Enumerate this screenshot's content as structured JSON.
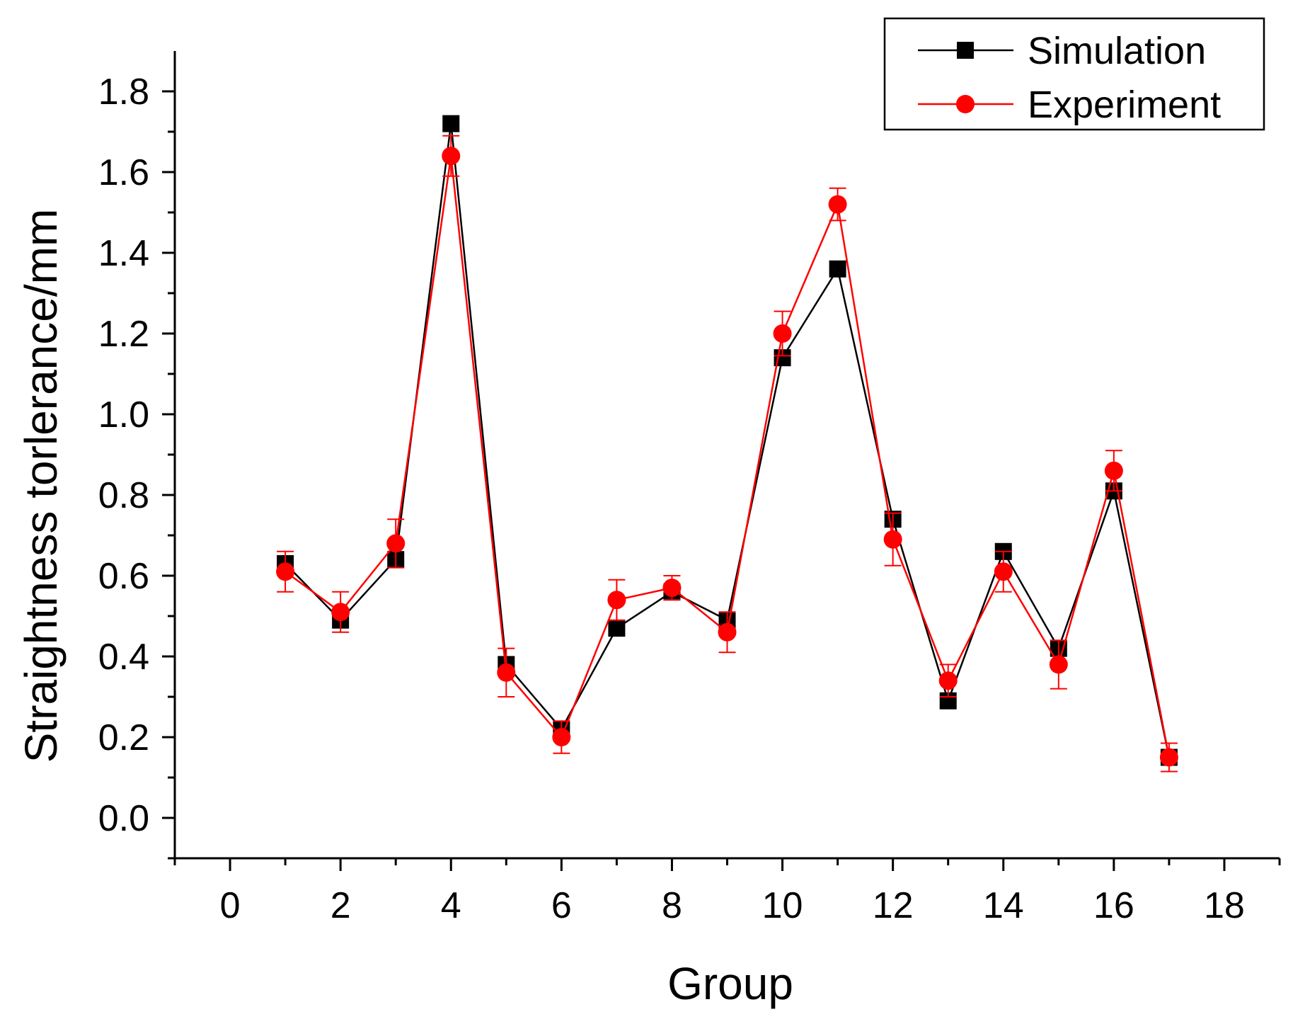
{
  "chart_data": {
    "type": "line",
    "title": "",
    "xlabel": "Group",
    "ylabel": "Straightness torlerance/mm",
    "xlim": [
      -1,
      19
    ],
    "ylim": [
      -0.1,
      1.9
    ],
    "xticks": [
      0,
      2,
      4,
      6,
      8,
      10,
      12,
      14,
      16,
      18
    ],
    "xtick_labels": [
      "0",
      "2",
      "4",
      "6",
      "8",
      "10",
      "12",
      "14",
      "16",
      "18"
    ],
    "yticks": [
      0.0,
      0.2,
      0.4,
      0.6,
      0.8,
      1.0,
      1.2,
      1.4,
      1.6,
      1.8
    ],
    "ytick_labels": [
      "0.0",
      "0.2",
      "0.4",
      "0.6",
      "0.8",
      "1.0",
      "1.2",
      "1.4",
      "1.6",
      "1.8"
    ],
    "legend_position": "top-right",
    "x": [
      1,
      2,
      3,
      4,
      5,
      6,
      7,
      8,
      9,
      10,
      11,
      12,
      13,
      14,
      15,
      16,
      17
    ],
    "series": [
      {
        "name": "Simulation",
        "marker": "square",
        "color": "#000000",
        "values": [
          0.63,
          0.49,
          0.64,
          1.72,
          0.38,
          0.22,
          0.47,
          0.56,
          0.49,
          1.14,
          1.36,
          0.74,
          0.29,
          0.66,
          0.42,
          0.81,
          0.15
        ]
      },
      {
        "name": "Experiment",
        "marker": "circle",
        "color": "#ff0000",
        "values": [
          0.61,
          0.51,
          0.68,
          1.64,
          0.36,
          0.2,
          0.54,
          0.57,
          0.46,
          1.2,
          1.52,
          0.69,
          0.34,
          0.61,
          0.38,
          0.86,
          0.15
        ],
        "errors": [
          0.05,
          0.05,
          0.06,
          0.05,
          0.06,
          0.04,
          0.05,
          0.03,
          0.05,
          0.055,
          0.04,
          0.065,
          0.04,
          0.05,
          0.06,
          0.05,
          0.035
        ]
      }
    ]
  }
}
